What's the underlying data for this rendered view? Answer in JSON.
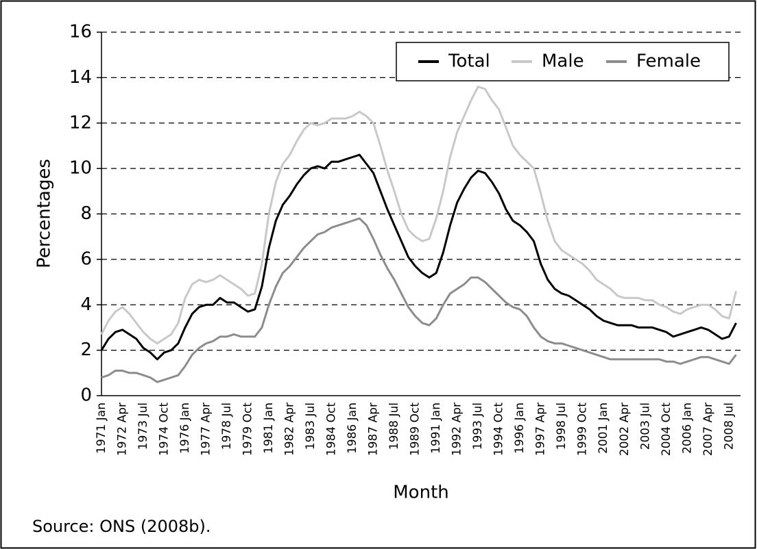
{
  "chart_data": {
    "type": "line",
    "y_label": "Percentages",
    "x_label": "Month",
    "source": "Source: ONS (2008b).",
    "categories": [
      "1971 Jan",
      null,
      null,
      "1972 Apr",
      null,
      null,
      "1973 Jul",
      null,
      null,
      "1974 Oct",
      null,
      null,
      "1976 Jan",
      null,
      null,
      "1977 Apr",
      null,
      null,
      "1978 Jul",
      null,
      null,
      "1979 Oct",
      null,
      null,
      "1981 Jan",
      null,
      null,
      "1982 Apr",
      null,
      null,
      "1983 Jul",
      null,
      null,
      "1984 Oct",
      null,
      null,
      "1986 Jan",
      null,
      null,
      "1987 Apr",
      null,
      null,
      "1988 Jul",
      null,
      null,
      "1989 Oct",
      null,
      null,
      "1991 Jan",
      null,
      null,
      "1992 Apr",
      null,
      null,
      "1993 Jul",
      null,
      null,
      "1994 Oct",
      null,
      null,
      "1996 Jan",
      null,
      null,
      "1997 Apr",
      null,
      null,
      "1998 Jul",
      null,
      null,
      "1999 Oct",
      null,
      null,
      "2001 Jan",
      null,
      null,
      "2002 Apr",
      null,
      null,
      "2003 Jul",
      null,
      null,
      "2004 Oct",
      null,
      null,
      "2006 Jan",
      null,
      null,
      "2007 Apr",
      null,
      null,
      "2008 Jul",
      null
    ],
    "series": [
      {
        "name": "Total",
        "color": "#000000",
        "values": [
          2.0,
          2.5,
          2.8,
          2.9,
          2.7,
          2.5,
          2.1,
          1.9,
          1.6,
          1.9,
          2.0,
          2.3,
          3.0,
          3.6,
          3.9,
          4.0,
          4.0,
          4.3,
          4.1,
          4.1,
          3.9,
          3.7,
          3.8,
          4.8,
          6.5,
          7.7,
          8.4,
          8.8,
          9.3,
          9.7,
          10.0,
          10.1,
          10.0,
          10.3,
          10.3,
          10.4,
          10.5,
          10.6,
          10.2,
          9.8,
          9.0,
          8.2,
          7.5,
          6.8,
          6.1,
          5.7,
          5.4,
          5.2,
          5.4,
          6.3,
          7.5,
          8.5,
          9.1,
          9.6,
          9.9,
          9.8,
          9.4,
          8.9,
          8.2,
          7.7,
          7.5,
          7.2,
          6.8,
          5.8,
          5.1,
          4.7,
          4.5,
          4.4,
          4.2,
          4.0,
          3.8,
          3.5,
          3.3,
          3.2,
          3.1,
          3.1,
          3.1,
          3.0,
          3.0,
          3.0,
          2.9,
          2.8,
          2.6,
          2.7,
          2.8,
          2.9,
          3.0,
          2.9,
          2.7,
          2.5,
          2.6,
          3.2
        ]
      },
      {
        "name": "Male",
        "color": "#c8c8c8",
        "values": [
          2.7,
          3.3,
          3.7,
          3.9,
          3.6,
          3.2,
          2.8,
          2.5,
          2.3,
          2.5,
          2.7,
          3.2,
          4.3,
          4.9,
          5.1,
          5.0,
          5.1,
          5.3,
          5.1,
          4.9,
          4.7,
          4.4,
          4.5,
          5.8,
          8.0,
          9.4,
          10.2,
          10.6,
          11.2,
          11.7,
          12.0,
          11.9,
          12.0,
          12.2,
          12.2,
          12.2,
          12.3,
          12.5,
          12.3,
          12.0,
          11.0,
          9.9,
          9.0,
          8.0,
          7.3,
          7.0,
          6.8,
          6.9,
          7.8,
          9.0,
          10.5,
          11.6,
          12.3,
          13.0,
          13.6,
          13.5,
          13.0,
          12.6,
          11.8,
          11.0,
          10.6,
          10.3,
          10.0,
          8.9,
          7.7,
          6.8,
          6.4,
          6.2,
          6.0,
          5.8,
          5.5,
          5.1,
          4.9,
          4.7,
          4.4,
          4.3,
          4.3,
          4.3,
          4.2,
          4.2,
          4.0,
          3.9,
          3.7,
          3.6,
          3.8,
          3.9,
          4.0,
          4.0,
          3.8,
          3.5,
          3.4,
          4.6
        ]
      },
      {
        "name": "Female",
        "color": "#8c8c8c",
        "values": [
          0.8,
          0.9,
          1.1,
          1.1,
          1.0,
          1.0,
          0.9,
          0.8,
          0.6,
          0.7,
          0.8,
          0.9,
          1.3,
          1.8,
          2.1,
          2.3,
          2.4,
          2.6,
          2.6,
          2.7,
          2.6,
          2.6,
          2.6,
          3.0,
          4.0,
          4.8,
          5.4,
          5.7,
          6.1,
          6.5,
          6.8,
          7.1,
          7.2,
          7.4,
          7.5,
          7.6,
          7.7,
          7.8,
          7.5,
          6.9,
          6.2,
          5.6,
          5.1,
          4.5,
          3.9,
          3.5,
          3.2,
          3.1,
          3.4,
          4.0,
          4.5,
          4.7,
          4.9,
          5.2,
          5.2,
          5.0,
          4.7,
          4.4,
          4.1,
          3.9,
          3.8,
          3.5,
          3.0,
          2.6,
          2.4,
          2.3,
          2.3,
          2.2,
          2.1,
          2.0,
          1.9,
          1.8,
          1.7,
          1.6,
          1.6,
          1.6,
          1.6,
          1.6,
          1.6,
          1.6,
          1.6,
          1.5,
          1.5,
          1.4,
          1.5,
          1.6,
          1.7,
          1.7,
          1.6,
          1.5,
          1.4,
          1.8
        ]
      }
    ],
    "ylim": [
      0,
      16
    ],
    "yticks": [
      0,
      2,
      4,
      6,
      8,
      10,
      12,
      14,
      16
    ],
    "grid": true,
    "legend": "upper right"
  }
}
